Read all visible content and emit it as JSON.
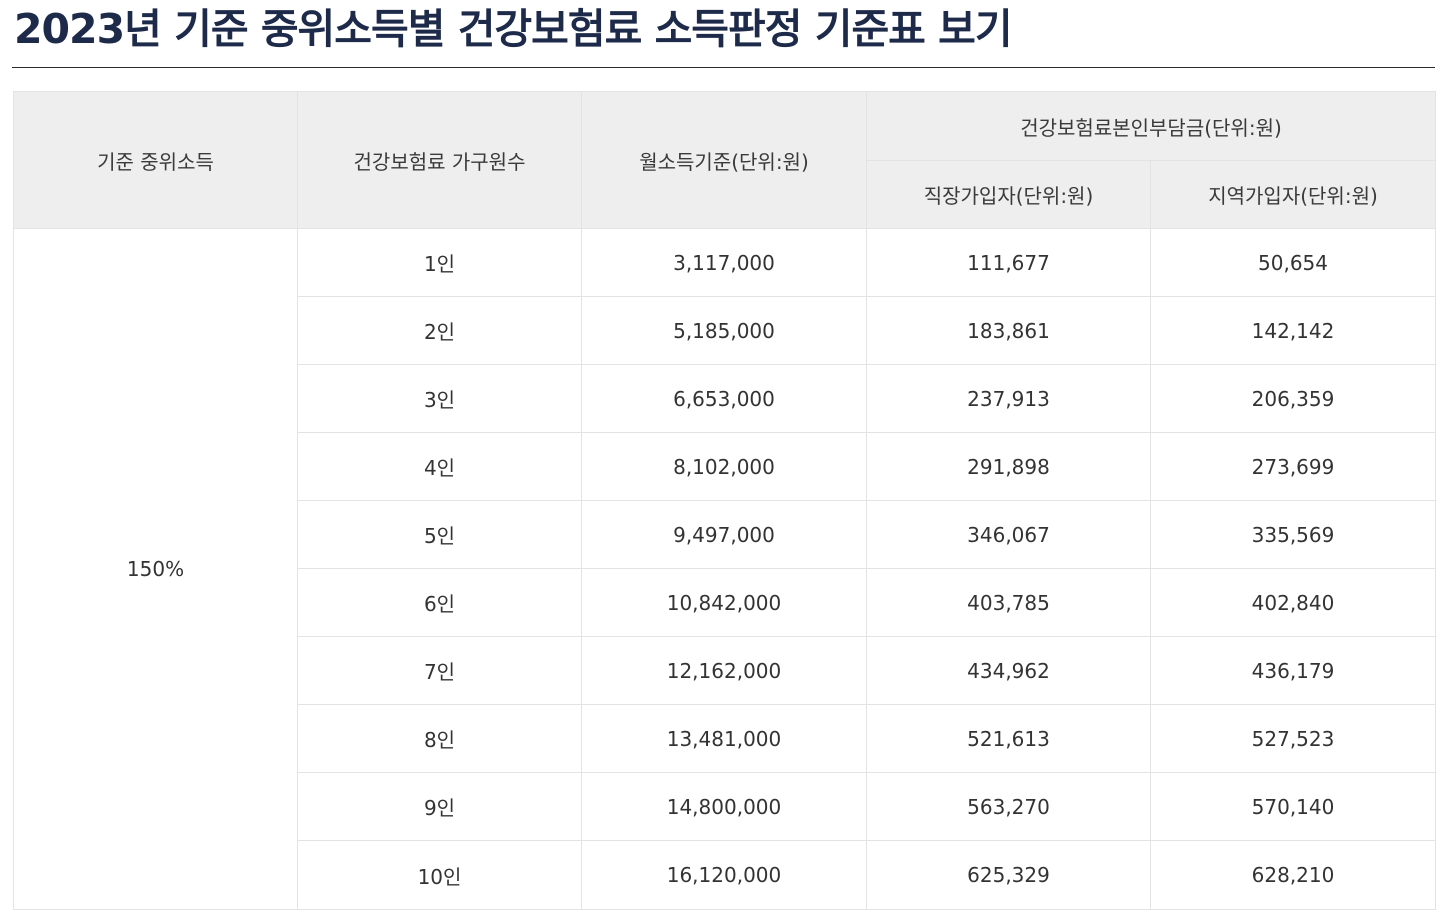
{
  "title": "2023년 기준 중위소득별 건강보험료 소득판정 기준표 보기",
  "table": {
    "headers": {
      "median_income": "기준 중위소득",
      "household_size": "건강보험료 가구원수",
      "monthly_income": "월소득기준(단위:원)",
      "premium_group": "건강보험료본인부담금(단위:원)",
      "employee": "직장가입자(단위:원)",
      "regional": "지역가입자(단위:원)"
    },
    "median_percent": "150%",
    "rows": [
      {
        "household": "1인",
        "monthly": "3,117,000",
        "employee": "111,677",
        "regional": "50,654"
      },
      {
        "household": "2인",
        "monthly": "5,185,000",
        "employee": "183,861",
        "regional": "142,142"
      },
      {
        "household": "3인",
        "monthly": "6,653,000",
        "employee": "237,913",
        "regional": "206,359"
      },
      {
        "household": "4인",
        "monthly": "8,102,000",
        "employee": "291,898",
        "regional": "273,699"
      },
      {
        "household": "5인",
        "monthly": "9,497,000",
        "employee": "346,067",
        "regional": "335,569"
      },
      {
        "household": "6인",
        "monthly": "10,842,000",
        "employee": "403,785",
        "regional": "402,840"
      },
      {
        "household": "7인",
        "monthly": "12,162,000",
        "employee": "434,962",
        "regional": "436,179"
      },
      {
        "household": "8인",
        "monthly": "13,481,000",
        "employee": "521,613",
        "regional": "527,523"
      },
      {
        "household": "9인",
        "monthly": "14,800,000",
        "employee": "563,270",
        "regional": "570,140"
      },
      {
        "household": "10인",
        "monthly": "16,120,000",
        "employee": "625,329",
        "regional": "628,210"
      }
    ]
  }
}
